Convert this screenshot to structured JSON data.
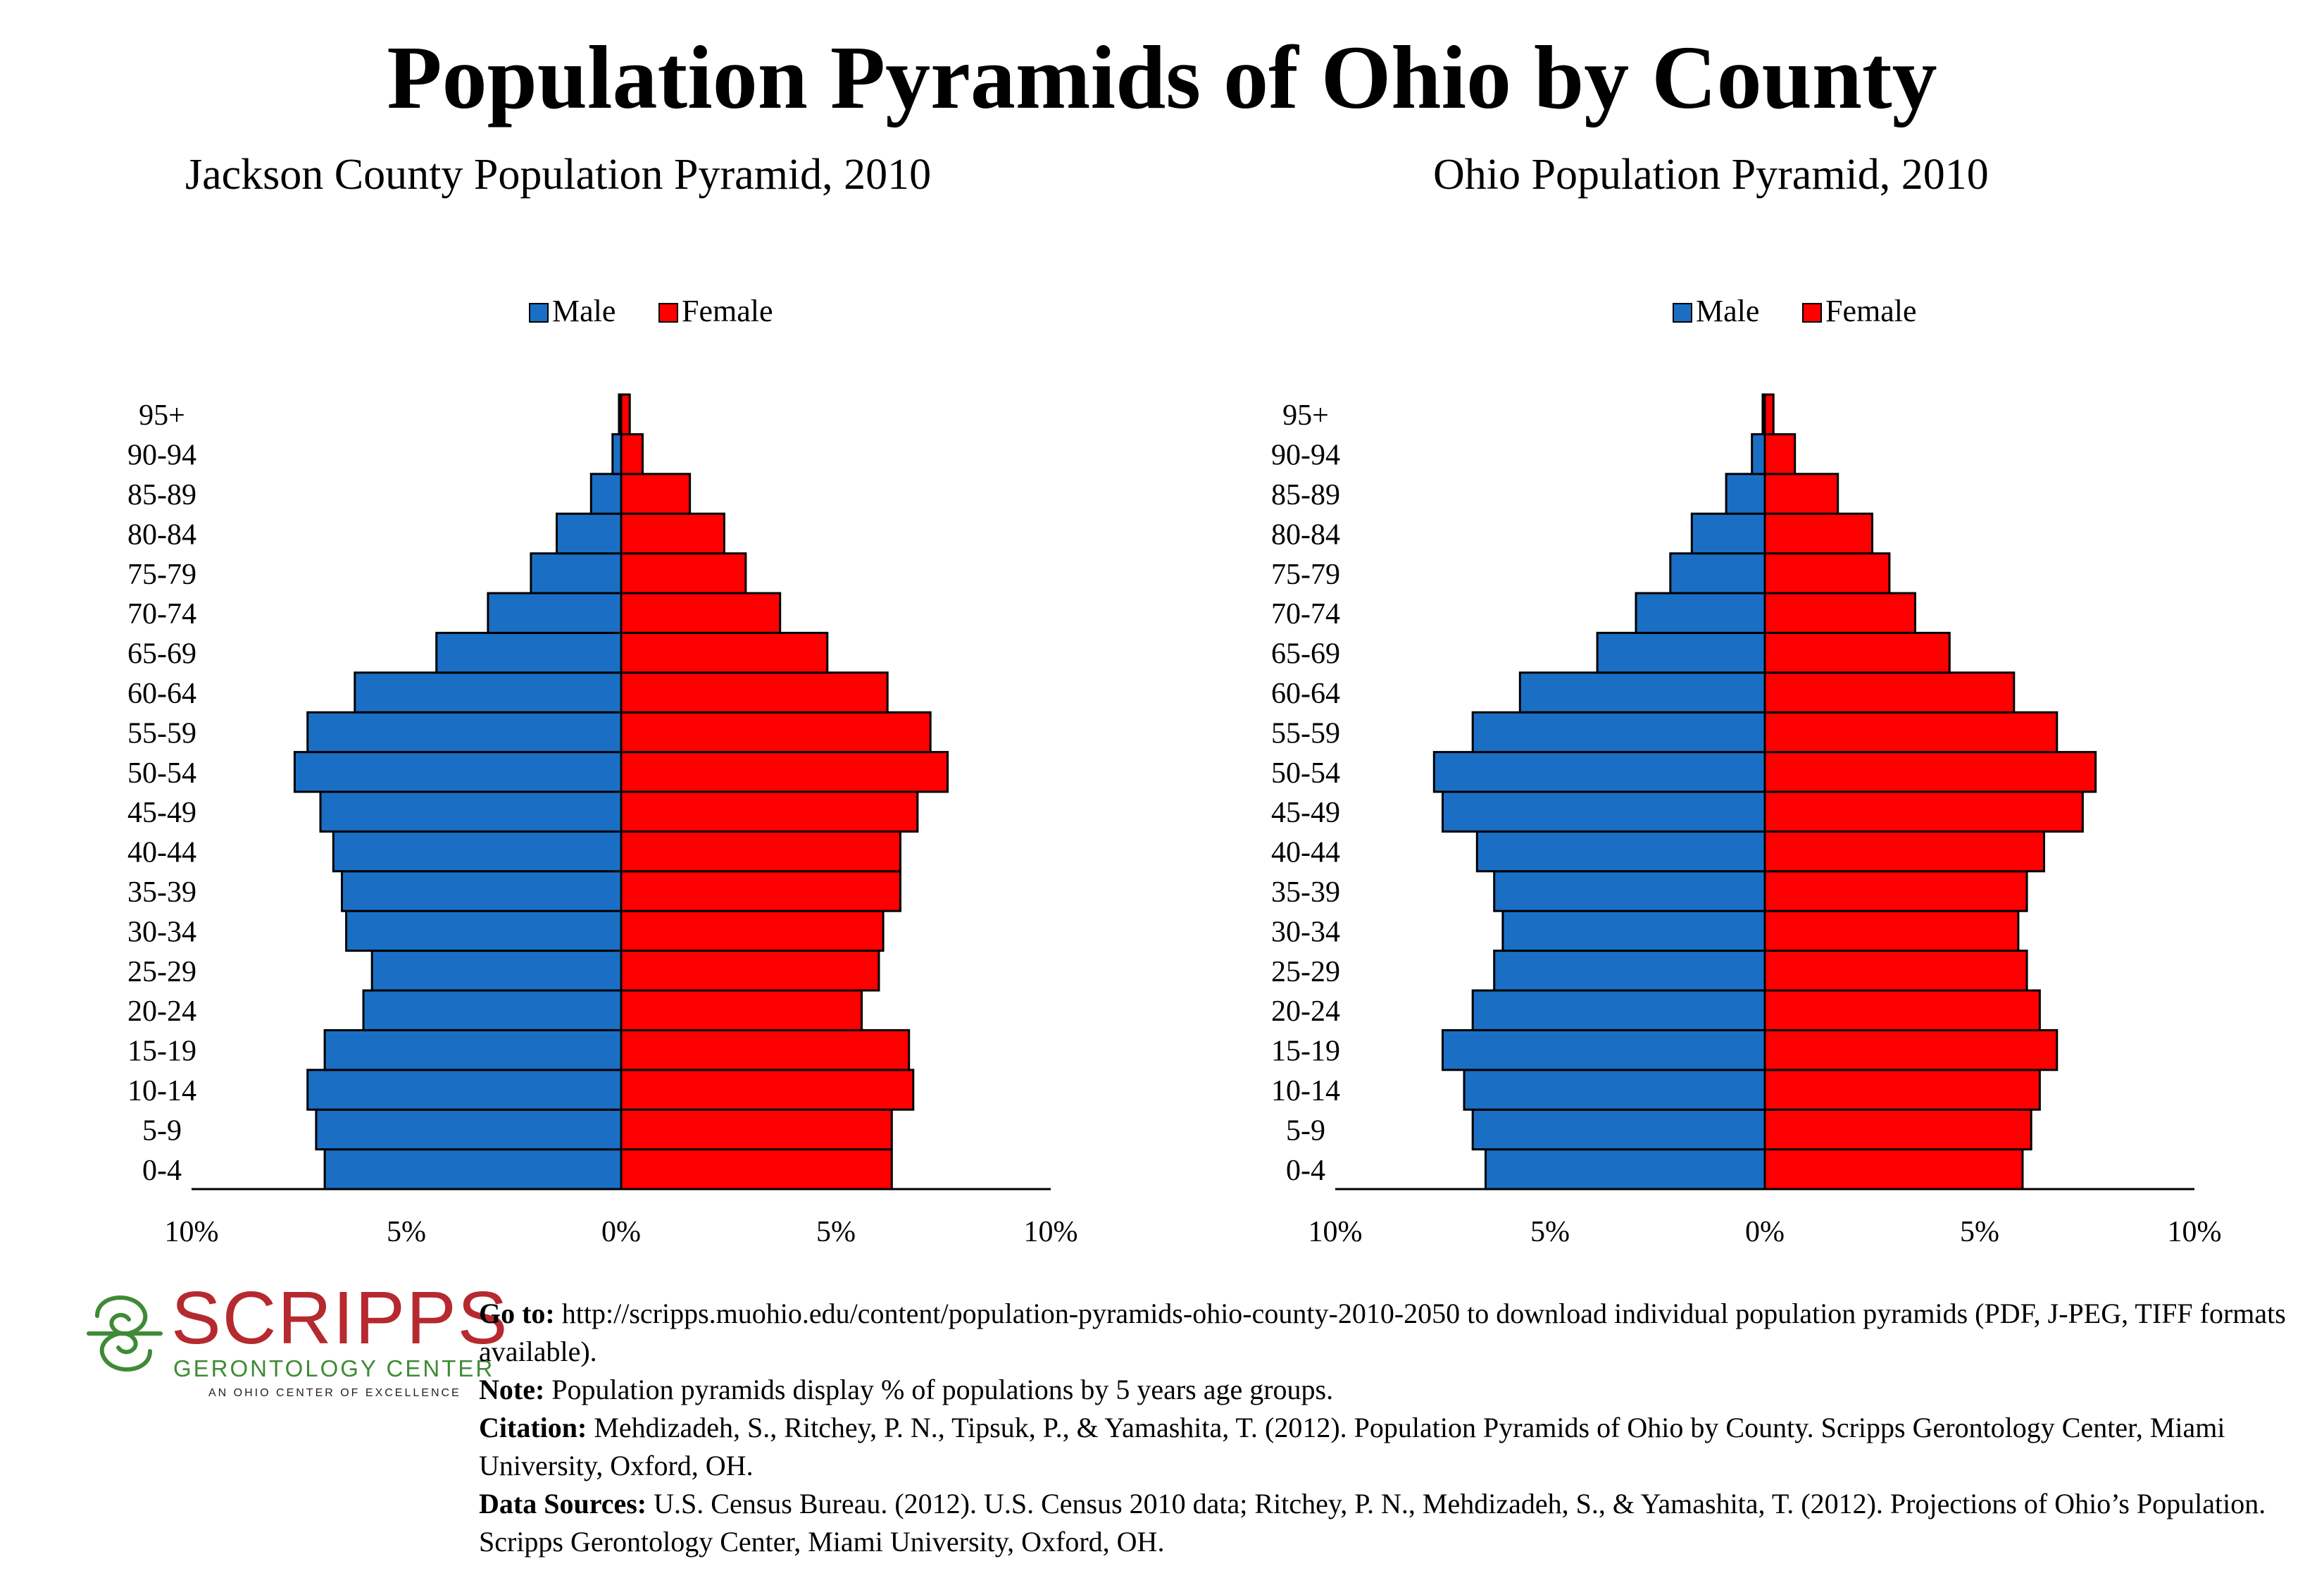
{
  "title": "Population Pyramids of Ohio by County",
  "colors": {
    "male": "#1a6fc4",
    "female": "#ff0000",
    "logo_red": "#b5292f",
    "logo_green": "#3f8a36"
  },
  "chart_data": [
    {
      "type": "bar",
      "title": "Jackson County Population Pyramid, 2010",
      "categories": [
        "0-4",
        "5-9",
        "10-14",
        "15-19",
        "20-24",
        "25-29",
        "30-34",
        "35-39",
        "40-44",
        "45-49",
        "50-54",
        "55-59",
        "60-64",
        "65-69",
        "70-74",
        "75-79",
        "80-84",
        "85-89",
        "90-94",
        "95+"
      ],
      "series": [
        {
          "name": "Male",
          "values": [
            6.9,
            7.1,
            7.3,
            6.9,
            6.0,
            5.8,
            6.4,
            6.5,
            6.7,
            7.0,
            7.6,
            7.3,
            6.2,
            4.3,
            3.1,
            2.1,
            1.5,
            0.7,
            0.2,
            0.05
          ]
        },
        {
          "name": "Female",
          "values": [
            6.3,
            6.3,
            6.8,
            6.7,
            5.6,
            6.0,
            6.1,
            6.5,
            6.5,
            6.9,
            7.6,
            7.2,
            6.2,
            4.8,
            3.7,
            2.9,
            2.4,
            1.6,
            0.5,
            0.2
          ]
        }
      ],
      "x_tick_labels": [
        "10%",
        "5%",
        "0%",
        "5%",
        "10%"
      ],
      "xlim": [
        -10,
        10
      ],
      "legend": "top-center",
      "grid": false
    },
    {
      "type": "bar",
      "title": "Ohio Population Pyramid, 2010",
      "categories": [
        "0-4",
        "5-9",
        "10-14",
        "15-19",
        "20-24",
        "25-29",
        "30-34",
        "35-39",
        "40-44",
        "45-49",
        "50-54",
        "55-59",
        "60-64",
        "65-69",
        "70-74",
        "75-79",
        "80-84",
        "85-89",
        "90-94",
        "95+"
      ],
      "series": [
        {
          "name": "Male",
          "values": [
            6.5,
            6.8,
            7.0,
            7.5,
            6.8,
            6.3,
            6.1,
            6.3,
            6.7,
            7.5,
            7.7,
            6.8,
            5.7,
            3.9,
            3.0,
            2.2,
            1.7,
            0.9,
            0.3,
            0.05
          ]
        },
        {
          "name": "Female",
          "values": [
            6.0,
            6.2,
            6.4,
            6.8,
            6.4,
            6.1,
            5.9,
            6.1,
            6.5,
            7.4,
            7.7,
            6.8,
            5.8,
            4.3,
            3.5,
            2.9,
            2.5,
            1.7,
            0.7,
            0.2
          ]
        }
      ],
      "x_tick_labels": [
        "10%",
        "5%",
        "0%",
        "5%",
        "10%"
      ],
      "xlim": [
        -10,
        10
      ],
      "legend": "top-center",
      "grid": false
    }
  ],
  "logo": {
    "word": "SCRIPPS",
    "subtitle": "GERONTOLOGY CENTER",
    "tagline": "AN OHIO CENTER OF EXCELLENCE"
  },
  "notes": {
    "goto_label": "Go to:",
    "goto_text": " http://scripps.muohio.edu/content/population-pyramids-ohio-county-2010-2050 to download individual population pyramids (PDF, J-PEG, TIFF formats available).",
    "note_label": "Note:",
    "note_text": " Population pyramids display % of populations by 5 years age groups.",
    "citation_label": "Citation:",
    "citation_text": " Mehdizadeh, S., Ritchey, P. N., Tipsuk, P., & Yamashita, T. (2012). Population Pyramids of Ohio by County. Scripps Gerontology Center, Miami University, Oxford, OH.",
    "sources_label": "Data Sources:",
    "sources_text": " U.S. Census Bureau. (2012). U.S. Census 2010 data; Ritchey, P. N., Mehdizadeh, S., & Yamashita, T. (2012). Projections of Ohio’s Population. Scripps Gerontology Center, Miami University, Oxford, OH."
  }
}
